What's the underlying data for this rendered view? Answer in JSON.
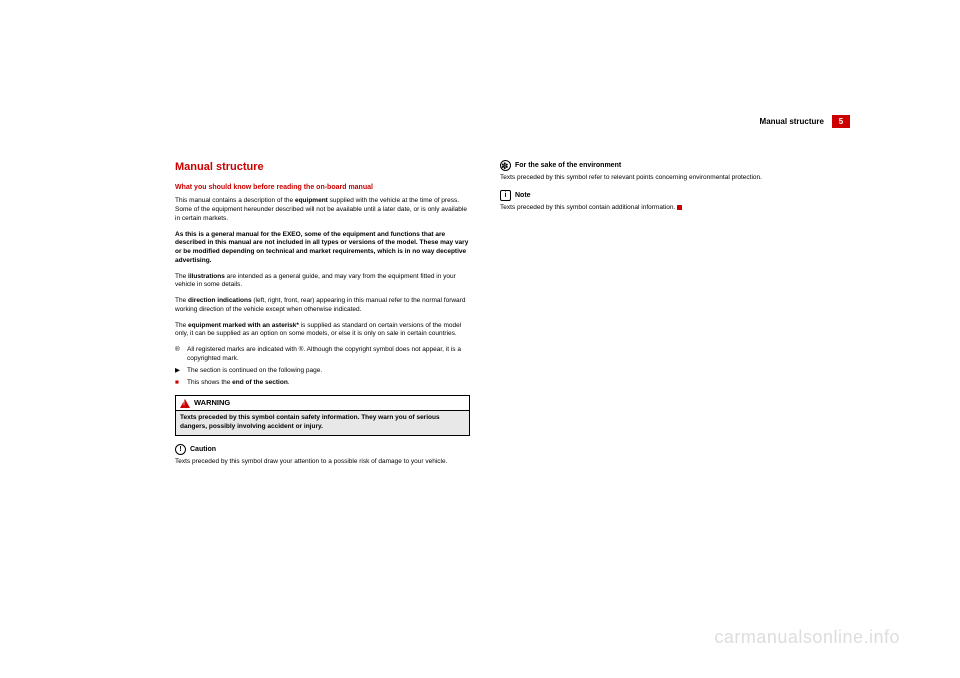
{
  "header": {
    "section": "Manual structure",
    "page": "5"
  },
  "left": {
    "title": "Manual structure",
    "subtitle": "What you should know before reading the on-board manual",
    "p1a": "This manual contains a description of the ",
    "p1b": "equipment",
    "p1c": " supplied with the vehicle at the time of press. Some of the equipment hereunder described will not be available until a later date, or is only available in certain markets.",
    "p2": "As this is a general manual for the EXEO, some of the equipment and functions that are described in this manual are not included in all types or versions of the model. These may vary or be modified depending on technical and market requirements, which is in no way deceptive advertising.",
    "p3a": "The ",
    "p3b": "illustrations",
    "p3c": " are intended as a general guide, and may vary from the equipment fitted in your vehicle in some details.",
    "p4a": "The ",
    "p4b": "direction indications",
    "p4c": " (left, right, front, rear) appearing in this manual refer to the normal forward working direction of the vehicle except when otherwise indicated.",
    "p5a": "The ",
    "p5b": "equipment marked with an asterisk*",
    "p5c": " is supplied as standard on certain versions of the model only, it can be supplied as an option on some models, or else it is only on sale in certain countries.",
    "b1sym": "®",
    "b1": "All registered marks are indicated with ®. Although the copyright symbol does not appear, it is a copyrighted mark.",
    "b2sym": "▶",
    "b2": "The section is continued on the following page.",
    "b3sym": "■",
    "b3a": "This shows the ",
    "b3b": "end of the section",
    "b3c": ".",
    "warnLabel": "WARNING",
    "warnBody": "Texts preceded by this symbol contain safety information. They warn you of serious dangers, possibly involving accident or injury.",
    "cautionLabel": "Caution",
    "cautionSym": "!",
    "cautionBody": "Texts preceded by this symbol draw your attention to a possible risk of damage to your vehicle."
  },
  "right": {
    "envLabel": "For the sake of the environment",
    "envBody": "Texts preceded by this symbol refer to relevant points concerning environmental protection.",
    "noteLabel": "Note",
    "noteSym": "i",
    "noteBody": "Texts preceded by this symbol contain additional information."
  },
  "watermark": "carmanualsonline.info",
  "colors": {
    "accent": "#cc0000",
    "text": "#000000",
    "bg": "#ffffff",
    "greybox": "#e8e8e8",
    "watermark": "#dddddd"
  }
}
